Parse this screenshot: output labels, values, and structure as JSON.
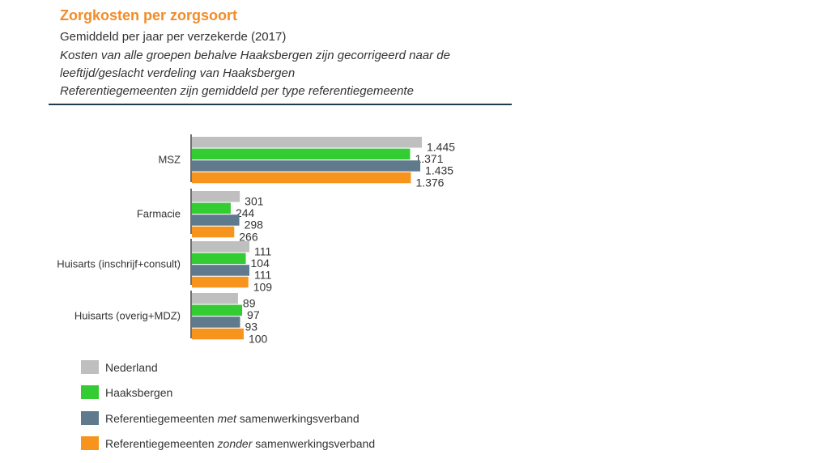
{
  "header": {
    "title": "Zorgkosten per zorgsoort",
    "subtitle": "Gemiddeld per jaar per verzekerde  (2017)",
    "notes": [
      "Kosten van alle groepen behalve Haaksbergen zijn gecorrigeerd naar de",
      "leeftijd/geslacht verdeling van Haaksbergen",
      "Referentiegemeenten zijn gemiddeld per type referentiegemeente"
    ]
  },
  "chart_data": {
    "type": "bar",
    "orientation": "horizontal",
    "categories": [
      "MSZ",
      "Farmacie",
      "Huisarts (inschrijf+consult)",
      "Huisarts (overig+MDZ)"
    ],
    "series": [
      {
        "name": "Nederland",
        "color": "#BFBFBF",
        "values": [
          1445,
          301,
          111,
          89
        ],
        "labels": [
          "1.445",
          "301",
          "111",
          "89"
        ]
      },
      {
        "name": "Haaksbergen",
        "color": "#33CC33",
        "values": [
          1371,
          244,
          104,
          97
        ],
        "labels": [
          "1.371",
          "244",
          "104",
          "97"
        ]
      },
      {
        "name": "Referentiegemeenten met samenwerkingsverband",
        "color": "#5F7A8C",
        "values": [
          1435,
          298,
          111,
          93
        ],
        "labels": [
          "1.435",
          "298",
          "111",
          "93"
        ]
      },
      {
        "name": "Referentiegemeenten zonder samenwerkingsverband",
        "color": "#F7941D",
        "values": [
          1376,
          266,
          109,
          100
        ],
        "labels": [
          "1.376",
          "266",
          "109",
          "100"
        ]
      }
    ],
    "axis_breaks": true,
    "grid": false,
    "legend_position": "bottom-left"
  },
  "legend": [
    {
      "prefix": "Nederland",
      "emph": "",
      "suffix": ""
    },
    {
      "prefix": "Haaksbergen",
      "emph": "",
      "suffix": ""
    },
    {
      "prefix": "Referentiegemeenten  ",
      "emph": "met",
      "suffix": " samenwerkingsverband"
    },
    {
      "prefix": "Referentiegemeenten  ",
      "emph": "zonder",
      "suffix": " samenwerkingsverband"
    }
  ]
}
